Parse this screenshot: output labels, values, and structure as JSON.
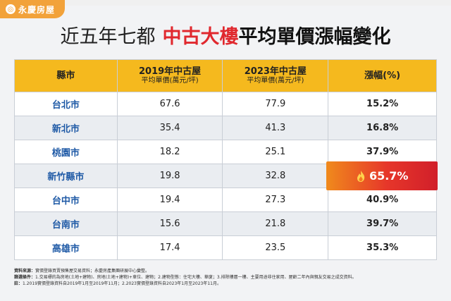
{
  "brand": {
    "name": "永慶房屋",
    "logo_icon": "house-coin-icon"
  },
  "headline": {
    "part1": "近五年七都",
    "part2": "中古大樓",
    "part3": "平均單價漲幅變化"
  },
  "table": {
    "headers": {
      "city": "縣市",
      "col2019": "2019年中古屋",
      "col2019_sub": "平均單價(萬元/坪)",
      "col2023": "2023年中古屋",
      "col2023_sub": "平均單價(萬元/坪)",
      "rate": "漲幅(%)"
    },
    "rows": [
      {
        "city": "台北市",
        "v2019": "67.6",
        "v2023": "77.9",
        "rate": "15.2%"
      },
      {
        "city": "新北市",
        "v2019": "35.4",
        "v2023": "41.3",
        "rate": "16.8%"
      },
      {
        "city": "桃園市",
        "v2019": "18.2",
        "v2023": "25.1",
        "rate": "37.9%"
      },
      {
        "city": "新竹縣市",
        "v2019": "19.8",
        "v2023": "32.8",
        "rate": "65.7%"
      },
      {
        "city": "台中市",
        "v2019": "19.4",
        "v2023": "27.3",
        "rate": "40.9%"
      },
      {
        "city": "台南市",
        "v2019": "15.6",
        "v2023": "21.8",
        "rate": "39.7%"
      },
      {
        "city": "高雄市",
        "v2019": "17.4",
        "v2023": "23.5",
        "rate": "35.3%"
      }
    ],
    "highlight_color": "#e6362a",
    "header_color": "#f5b91e",
    "city_color": "#1f5aa6"
  },
  "notes": {
    "source_label": "資料來源：",
    "source_text": "實價登錄買賣預售屋交易資料；永慶房產集團研展中心彙整。",
    "filter_label": "篩選條件：",
    "filter_text": "1.交易標的為房地(土地+建物)、房地(土地+建物)+車位、建物；2.建物型態：住宅大樓、華廈；3.排除樓層一樓、主要用途非住家用、屋齡二年內與親友交易之成交資料。",
    "note_label": "註：",
    "note_text": "1.2019實價登錄資料自2019年1月至2019年11月；2.2023實價登錄資料自2023年1月至2023年11月。"
  }
}
